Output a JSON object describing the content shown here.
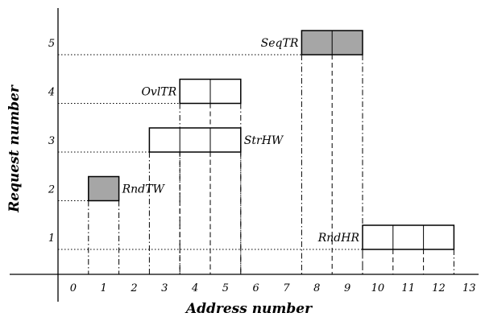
{
  "axes": {
    "x_title": "Address number",
    "y_title": "Request number",
    "x_ticks": [
      "0",
      "1",
      "2",
      "3",
      "4",
      "5",
      "6",
      "7",
      "8",
      "9",
      "10",
      "11",
      "12",
      "13"
    ],
    "y_ticks": [
      "1",
      "2",
      "3",
      "4",
      "5"
    ]
  },
  "requests": [
    {
      "id": 1,
      "label": "RndHR",
      "start": 10,
      "cells": 3,
      "fill": "#ffffff",
      "label_side": "left"
    },
    {
      "id": 2,
      "label": "RndTW",
      "start": 1,
      "cells": 1,
      "fill": "#a6a6a6",
      "label_side": "right"
    },
    {
      "id": 3,
      "label": "StrHW",
      "start": 3,
      "cells": 3,
      "fill": "#ffffff",
      "label_side": "right"
    },
    {
      "id": 4,
      "label": "OvlTR",
      "start": 4,
      "cells": 2,
      "fill": "#ffffff",
      "label_side": "left"
    },
    {
      "id": 5,
      "label": "SeqTR",
      "start": 8,
      "cells": 2,
      "fill": "#a6a6a6",
      "label_side": "left"
    }
  ]
}
